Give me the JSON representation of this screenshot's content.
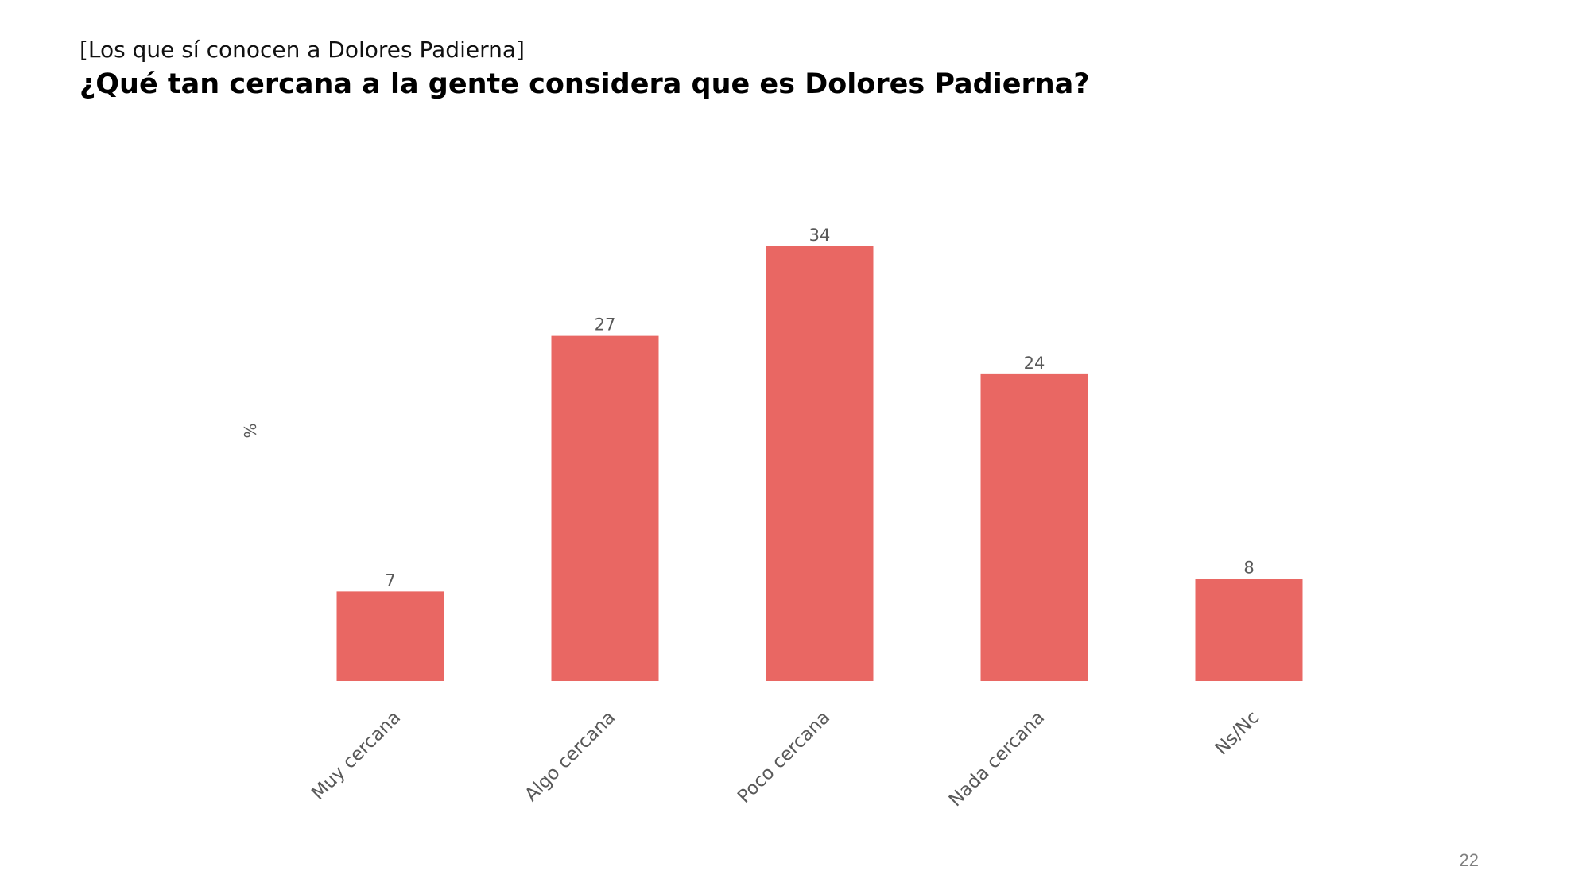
{
  "header": {
    "subtitle": "[Los que sí conocen a Dolores Padierna]",
    "title": "¿Qué tan cercana a la gente considera que es Dolores Padierna?"
  },
  "page_number": "22",
  "colors": {
    "bar": "#E96763",
    "label": "#595959"
  },
  "chart_data": {
    "type": "bar",
    "categories": [
      "Muy cercana",
      "Algo cercana",
      "Poco cercana",
      "Nada cercana",
      "Ns/Nc"
    ],
    "values": [
      7,
      27,
      34,
      24,
      8
    ],
    "data_labels": [
      "7",
      "27",
      "34",
      "24",
      "8"
    ],
    "title": "",
    "xlabel": "",
    "ylabel": "%",
    "ylim": [
      0,
      34
    ],
    "grid": false,
    "legend": "none"
  }
}
